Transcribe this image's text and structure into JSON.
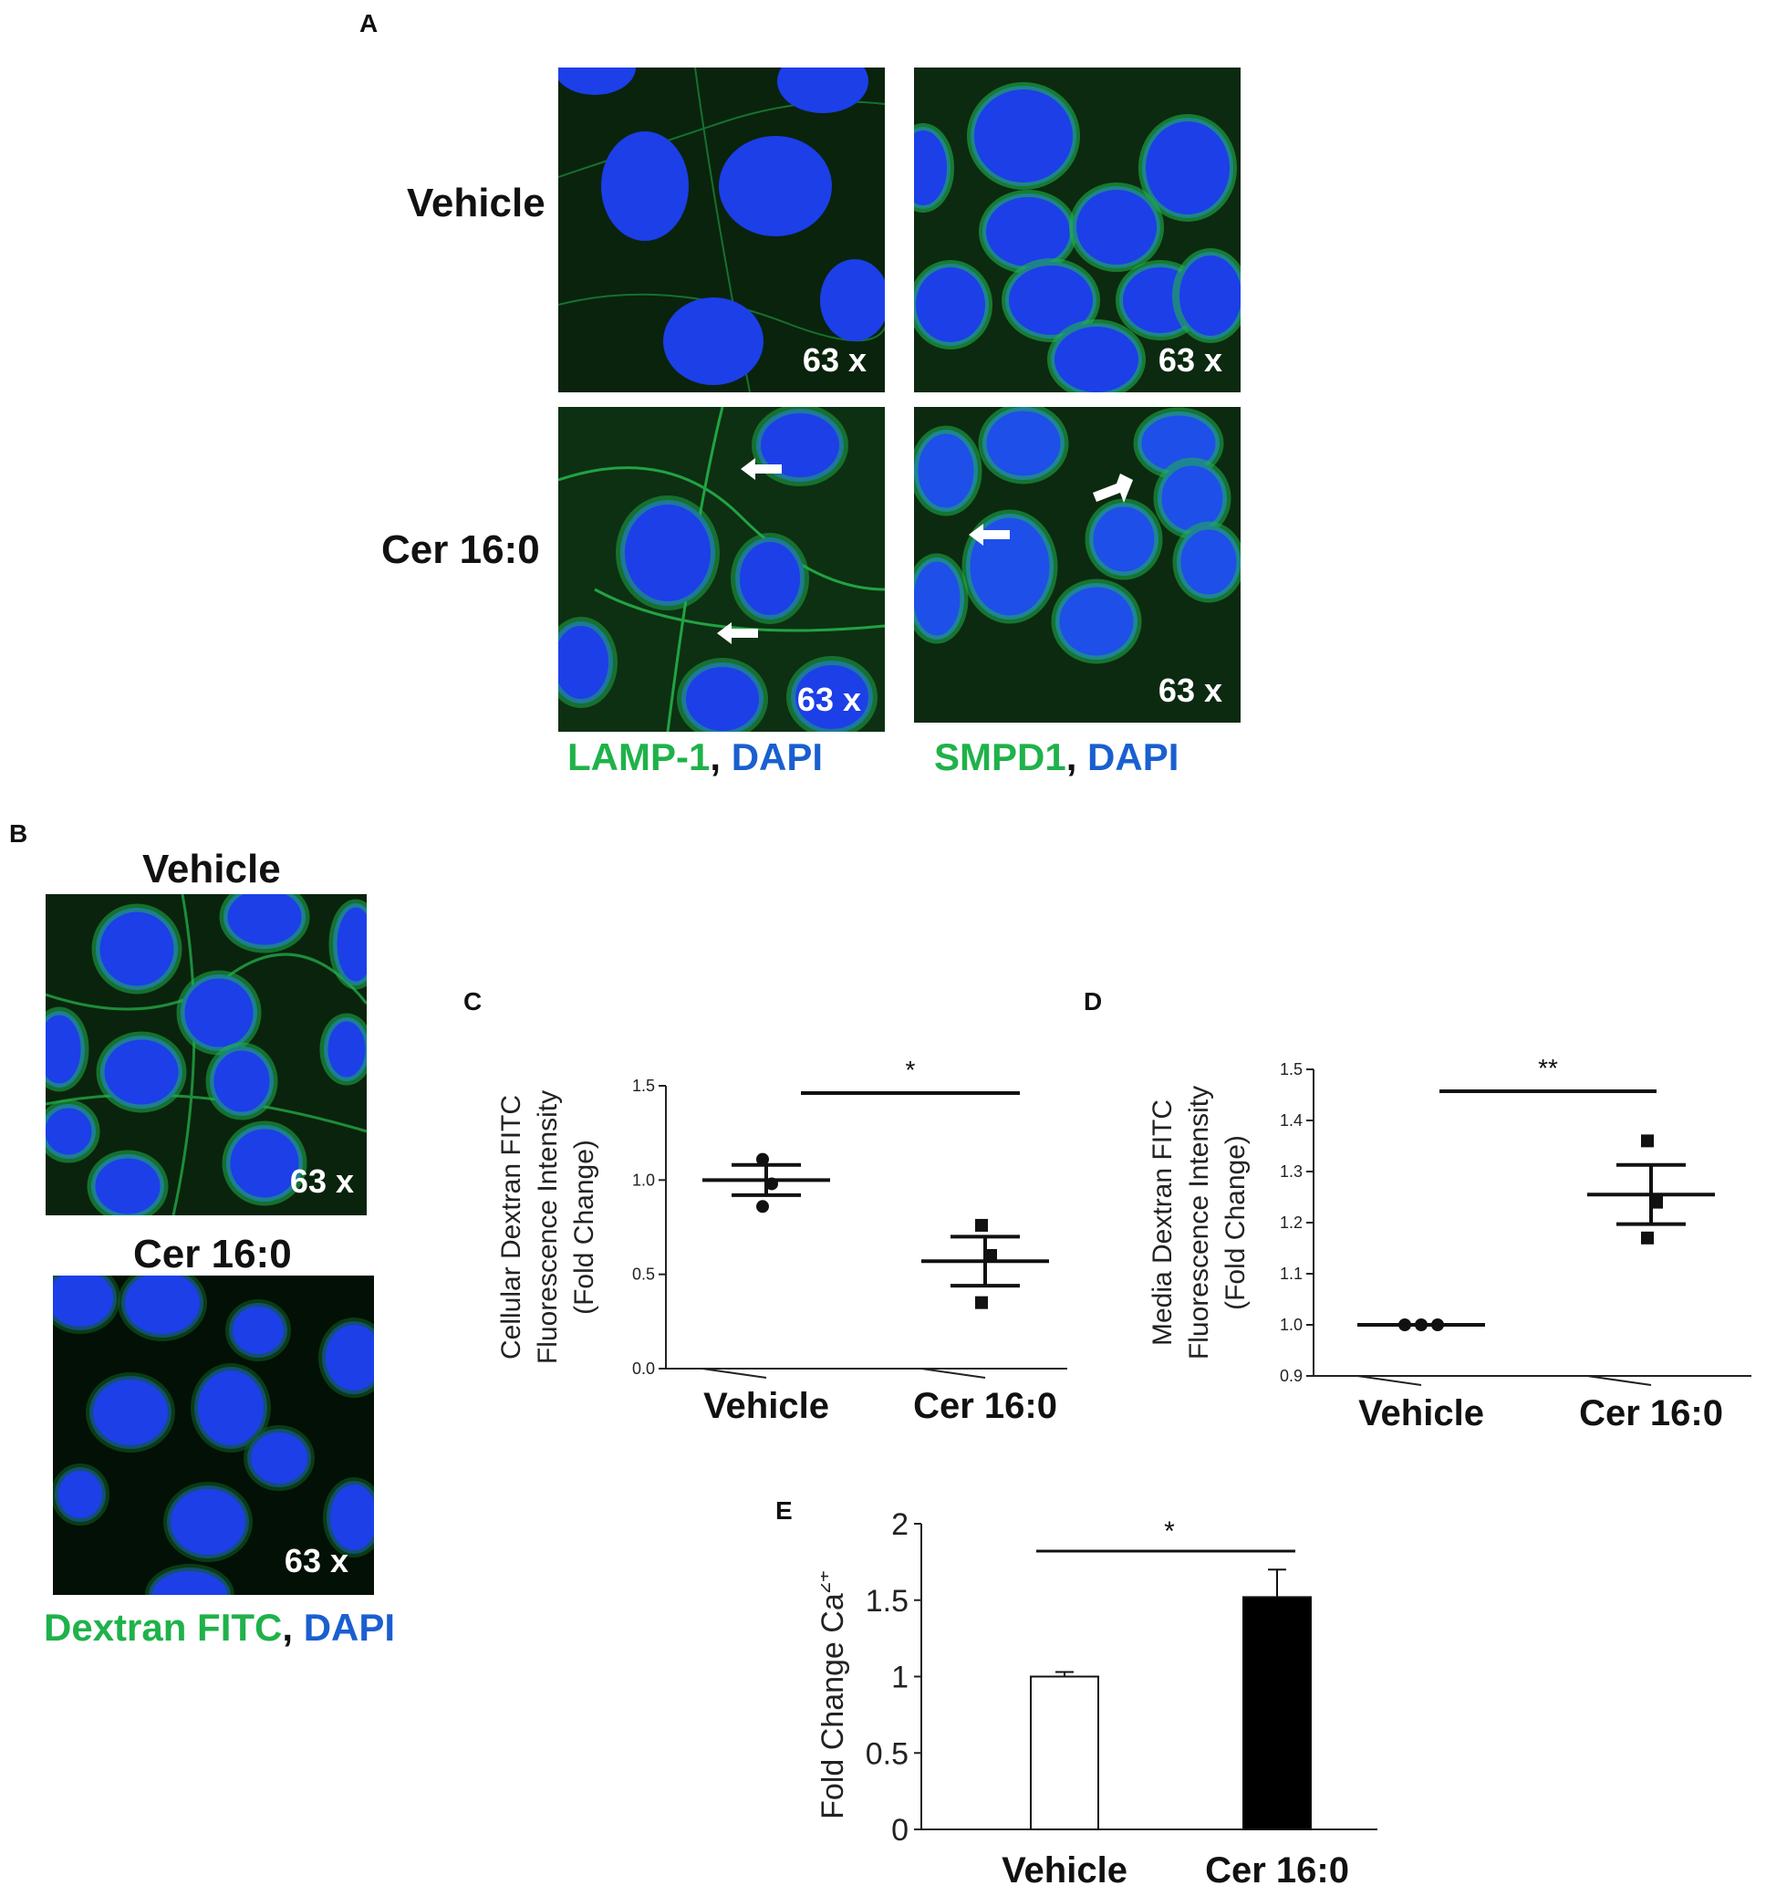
{
  "panels": {
    "A": {
      "letter": "A",
      "rows": [
        "Vehicle",
        "Cer 16:0"
      ],
      "magnification": "63 x",
      "captions": [
        {
          "green": "LAMP-1",
          "sep": ", ",
          "blue": "DAPI"
        },
        {
          "green": "SMPD1",
          "sep": ", ",
          "blue": "DAPI"
        }
      ]
    },
    "B": {
      "letter": "B",
      "titles": [
        "Vehicle",
        "Cer 16:0"
      ],
      "magnification": "63 x",
      "caption": {
        "green": "Dextran FITC",
        "sep": ", ",
        "blue": "DAPI"
      }
    },
    "C": {
      "letter": "C"
    },
    "D": {
      "letter": "D"
    },
    "E": {
      "letter": "E"
    }
  },
  "colors": {
    "nucleus": "#1c3fe8",
    "membrane_green": "#1fb24a",
    "background_dark": "#071d0a",
    "bar_vehicle": "#ffffff",
    "bar_cer": "#000000"
  },
  "chart_data": [
    {
      "id": "C",
      "type": "scatter",
      "ylabel": [
        "Cellular Dextran FITC",
        "Fluorescence Intensity",
        "(Fold Change)"
      ],
      "categories": [
        "Vehicle",
        "Cer 16:0"
      ],
      "ylim": [
        0.0,
        1.5
      ],
      "yticks": [
        "0.0",
        "0.5",
        "1.0",
        "1.5"
      ],
      "series": [
        {
          "name": "Vehicle",
          "marker": "circle",
          "points": [
            1.11,
            0.98,
            0.86
          ],
          "mean": 1.0,
          "sem": 0.08
        },
        {
          "name": "Cer 16:0",
          "marker": "square",
          "points": [
            0.76,
            0.6,
            0.35
          ],
          "mean": 0.57,
          "sem": 0.13
        }
      ],
      "significance": "*"
    },
    {
      "id": "D",
      "type": "scatter",
      "ylabel": [
        "Media Dextran FITC",
        "Fluorescence Intensity",
        "(Fold Change)"
      ],
      "categories": [
        "Vehicle",
        "Cer 16:0"
      ],
      "ylim": [
        0.9,
        1.5
      ],
      "yticks": [
        "0.9",
        "1.0",
        "1.1",
        "1.2",
        "1.3",
        "1.4",
        "1.5"
      ],
      "series": [
        {
          "name": "Vehicle",
          "marker": "circle",
          "points": [
            1.0,
            1.0,
            1.0
          ],
          "mean": 1.0,
          "sem": 0.0
        },
        {
          "name": "Cer 16:0",
          "marker": "square",
          "points": [
            1.36,
            1.24,
            1.17
          ],
          "mean": 1.255,
          "sem": 0.058
        }
      ],
      "significance": "**"
    },
    {
      "id": "E",
      "type": "bar",
      "ylabel": "Fold Change Ca",
      "ylabel_sup": "2+",
      "categories": [
        "Vehicle",
        "Cer 16:0"
      ],
      "values": [
        1.0,
        1.52
      ],
      "errors": [
        0.03,
        0.18
      ],
      "ylim": [
        0,
        2
      ],
      "yticks": [
        "0",
        "0.5",
        "1",
        "1.5",
        "2"
      ],
      "significance": "*"
    }
  ]
}
